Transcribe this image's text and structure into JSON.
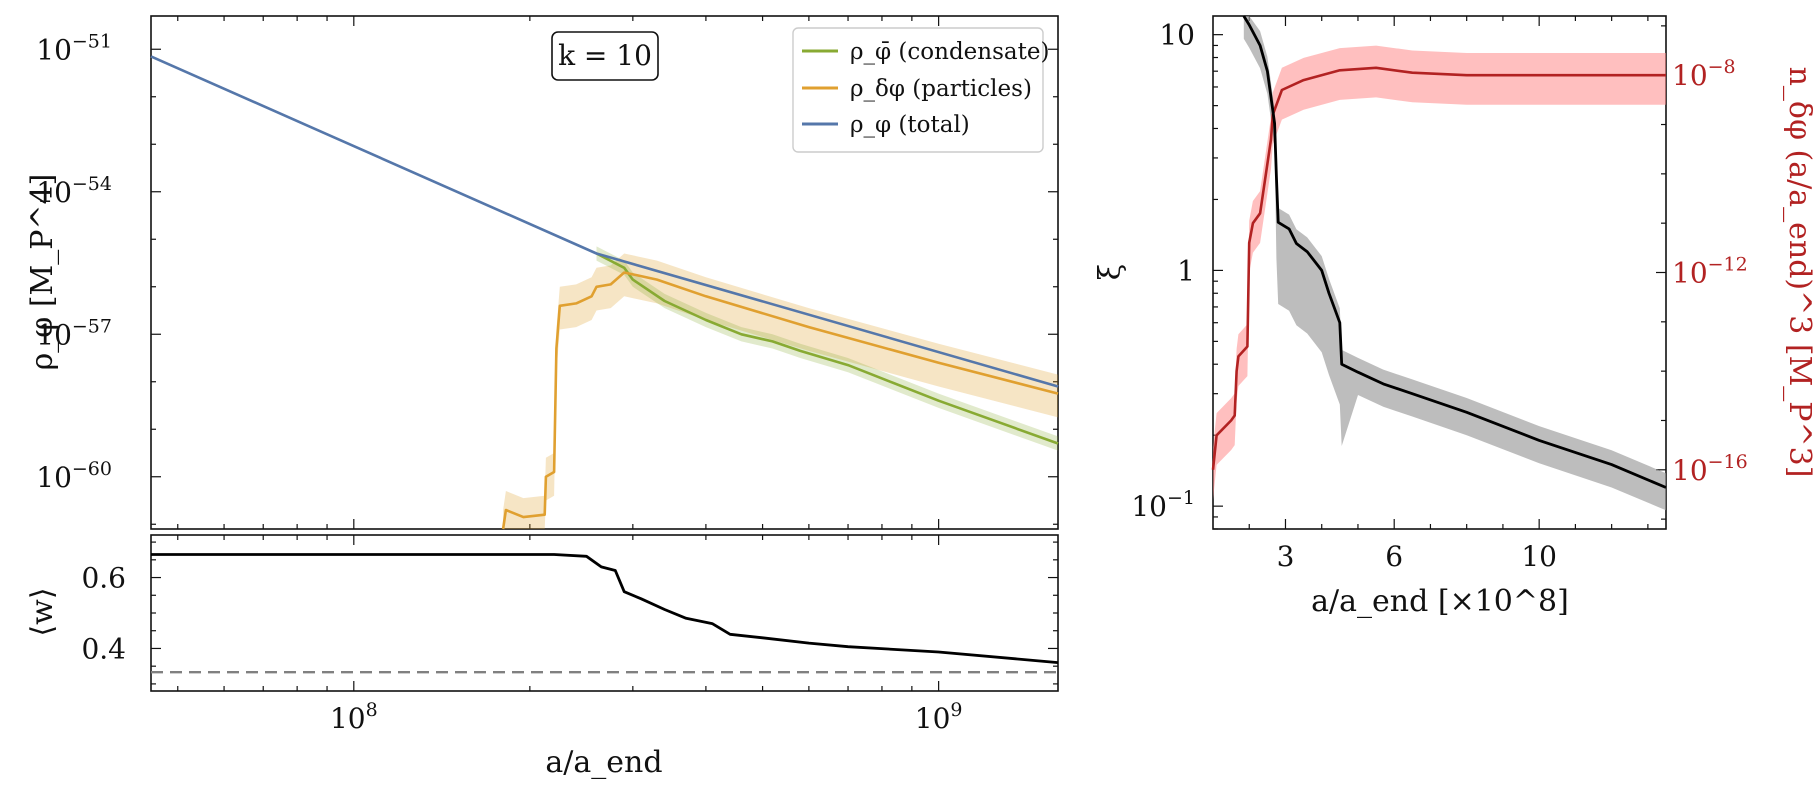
{
  "chart_data": [
    {
      "id": "top-left",
      "type": "line",
      "xscale": "log",
      "yscale": "log",
      "xlim": [
        45000000.0,
        1600000000.0
      ],
      "ylim_exp": [
        -61.1,
        -50.3
      ],
      "ylabel": "ρ_φ [M_P^4]",
      "yticks": [
        {
          "exp": -51,
          "base": "10",
          "sup": "−51"
        },
        {
          "exp": -54,
          "base": "10",
          "sup": "−54"
        },
        {
          "exp": -57,
          "base": "10",
          "sup": "−57"
        },
        {
          "exp": -60,
          "base": "10",
          "sup": "−60"
        }
      ],
      "annotation": "k = 10",
      "legend_position": "top-right",
      "series": [
        {
          "name": "total",
          "legend": "ρ_φ (total)",
          "color": "#5577aa",
          "x": [
            45000000.0,
            260000000.0,
            1600000000.0
          ],
          "logy": [
            -51.15,
            -55.3,
            -58.1
          ]
        },
        {
          "name": "condensate",
          "legend": "ρ_φ̄ (condensate)",
          "color": "#88aa33",
          "x": [
            260000000.0,
            290000000.0,
            300000000.0,
            340000000.0,
            400000000.0,
            460000000.0,
            520000000.0,
            580000000.0,
            700000000.0,
            1000000000.0,
            1600000000.0
          ],
          "logy": [
            -55.3,
            -55.6,
            -55.85,
            -56.3,
            -56.7,
            -57.0,
            -57.15,
            -57.35,
            -57.65,
            -58.4,
            -59.3
          ]
        },
        {
          "name": "particles",
          "legend": "ρ_δφ (particles)",
          "color": "#e0a030",
          "x": [
            180000000.0,
            182000000.0,
            195000000.0,
            212000000.0,
            213000000.0,
            220000000.0,
            222000000.0,
            225000000.0,
            240000000.0,
            255000000.0,
            260000000.0,
            275000000.0,
            290000000.0,
            330000000.0,
            400000000.0,
            600000000.0,
            1000000000.0,
            1600000000.0
          ],
          "logy": [
            -61.1,
            -60.7,
            -60.85,
            -60.8,
            -60.0,
            -59.9,
            -57.3,
            -56.4,
            -56.35,
            -56.2,
            -56.0,
            -55.95,
            -55.7,
            -55.85,
            -56.2,
            -56.85,
            -57.6,
            -58.25
          ]
        }
      ],
      "legend": [
        {
          "key": "condensate",
          "label": "ρ_φ̄ (condensate)"
        },
        {
          "key": "particles",
          "label": "ρ_δφ (particles)"
        },
        {
          "key": "total",
          "label": "ρ_φ (total)"
        }
      ]
    },
    {
      "id": "bottom-left",
      "type": "line",
      "xscale": "log",
      "xlim": [
        45000000.0,
        1600000000.0
      ],
      "ylim": [
        0.28,
        0.72
      ],
      "ylabel": "⟨w⟩",
      "xlabel": "a/a_end",
      "yticks": [
        {
          "v": 0.4,
          "label": "0.4"
        },
        {
          "v": 0.6,
          "label": "0.6"
        }
      ],
      "xticks": [
        {
          "v": 100000000.0,
          "base": "10",
          "sup": "8"
        },
        {
          "v": 1000000000.0,
          "base": "10",
          "sup": "9"
        }
      ],
      "reference_line": {
        "y": 0.333,
        "style": "dashed",
        "color": "#808080"
      },
      "series": [
        {
          "name": "w",
          "color": "#000000",
          "x": [
            45000000.0,
            220000000.0,
            250000000.0,
            265000000.0,
            280000000.0,
            290000000.0,
            310000000.0,
            340000000.0,
            370000000.0,
            410000000.0,
            440000000.0,
            500000000.0,
            600000000.0,
            700000000.0,
            1000000000.0,
            1600000000.0
          ],
          "y": [
            0.665,
            0.665,
            0.66,
            0.63,
            0.62,
            0.56,
            0.54,
            0.51,
            0.485,
            0.47,
            0.44,
            0.43,
            0.415,
            0.405,
            0.39,
            0.36
          ]
        }
      ]
    },
    {
      "id": "right",
      "type": "line",
      "xscale": "linear",
      "yscale": "log",
      "xlim": [
        1.0,
        13.5
      ],
      "ylim": [
        0.08,
        12
      ],
      "xlabel": "a/a_end [×10^8]",
      "ylabel": "ξ",
      "ylabel_right": "n_δφ (a/a_end)^3 [M_P^3]",
      "xticks": [
        {
          "v": 3,
          "label": "3"
        },
        {
          "v": 6,
          "label": "6"
        },
        {
          "v": 10,
          "label": "10"
        }
      ],
      "yticks": [
        {
          "v": 10,
          "base": "10",
          "sup": ""
        },
        {
          "v": 1,
          "base": "1",
          "sup": ""
        },
        {
          "v": 0.1,
          "base": "10",
          "sup": "−1"
        }
      ],
      "right_ylim_exp": [
        -17.2,
        -6.8
      ],
      "right_yticks": [
        {
          "exp": -8,
          "base": "10",
          "sup": "−8"
        },
        {
          "exp": -12,
          "base": "10",
          "sup": "−12"
        },
        {
          "exp": -16,
          "base": "10",
          "sup": "−16"
        }
      ],
      "series": [
        {
          "name": "xi",
          "axis": "left",
          "color": "#000000",
          "x": [
            1.85,
            2.0,
            2.3,
            2.5,
            2.7,
            2.75,
            2.8,
            3.1,
            3.3,
            3.6,
            4.0,
            4.2,
            4.5,
            4.55,
            5.0,
            5.7,
            6.5,
            8.0,
            10.0,
            12.0,
            13.5
          ],
          "y": [
            12,
            11,
            9,
            7,
            4.2,
            2.5,
            1.6,
            1.5,
            1.3,
            1.2,
            1.0,
            0.8,
            0.6,
            0.4,
            0.37,
            0.33,
            0.3,
            0.25,
            0.19,
            0.15,
            0.12
          ]
        },
        {
          "name": "n",
          "axis": "right",
          "color": "#b22222",
          "x": [
            1.0,
            1.1,
            1.5,
            1.6,
            1.65,
            1.7,
            1.95,
            2.0,
            2.1,
            2.3,
            2.6,
            2.65,
            2.9,
            3.5,
            4.5,
            5.5,
            6.5,
            8.0,
            10.0,
            13.5
          ],
          "logy": [
            -16.0,
            -15.3,
            -15.0,
            -14.9,
            -14.0,
            -13.7,
            -13.5,
            -11.4,
            -11.0,
            -10.8,
            -9.3,
            -8.8,
            -8.3,
            -8.1,
            -7.9,
            -7.85,
            -7.95,
            -8.0,
            -8.0,
            -8.0
          ]
        }
      ]
    }
  ]
}
